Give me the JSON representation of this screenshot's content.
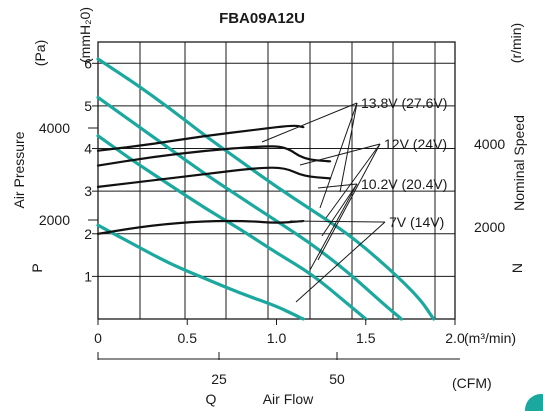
{
  "chart_data": {
    "type": "line",
    "title": "FBA09A12U",
    "colors": {
      "pq": "#1aa89f",
      "speed": "#111111",
      "grid": "#1a1a1a"
    },
    "axes": {
      "x_bottom": {
        "unit": "(m³/min)",
        "ticks": [
          "0",
          "0.5",
          "1.0",
          "1.5",
          "2.0"
        ],
        "range": [
          0,
          2.0
        ]
      },
      "x_cfm": {
        "unit": "(CFM)",
        "ticks": [
          "25",
          "50"
        ]
      },
      "x_label": {
        "symbol": "Q",
        "text": "Air Flow"
      },
      "y_mmh2o": {
        "unit": "(mmH₂0)",
        "ticks": [
          "1",
          "2",
          "3",
          "4",
          "5",
          "6"
        ],
        "range": [
          0,
          6.5
        ]
      },
      "y_pa": {
        "unit": "(Pa)",
        "ticks": [
          "2000",
          "4000"
        ],
        "label": "Air Pressure",
        "symbol": "P"
      },
      "y_right": {
        "unit": "(r/min)",
        "ticks": [
          "2000",
          "4000"
        ],
        "label": "Nominal Speed",
        "symbol": "N"
      },
      "grid": true
    },
    "curve_labels": [
      "13.8V (27.6V)",
      "12V (24V)",
      "10.2V (20.4V)",
      "7V (14V)"
    ],
    "pressure_series": [
      {
        "name": "13.8V (27.6V)",
        "x": [
          0,
          0.2,
          0.4,
          0.6,
          0.8,
          1.0,
          1.2,
          1.4,
          1.6,
          1.8,
          1.88
        ],
        "y": [
          6.1,
          5.55,
          4.95,
          4.3,
          3.7,
          3.1,
          2.55,
          2.0,
          1.3,
          0.5,
          0.0
        ]
      },
      {
        "name": "12V (24V)",
        "x": [
          0,
          0.2,
          0.4,
          0.6,
          0.8,
          1.0,
          1.2,
          1.4,
          1.6,
          1.7
        ],
        "y": [
          5.2,
          4.6,
          4.0,
          3.4,
          2.85,
          2.3,
          1.75,
          1.1,
          0.35,
          0.0
        ]
      },
      {
        "name": "10.2V (20.4V)",
        "x": [
          0,
          0.2,
          0.4,
          0.6,
          0.8,
          1.0,
          1.2,
          1.4,
          1.5
        ],
        "y": [
          4.3,
          3.7,
          3.15,
          2.6,
          2.1,
          1.55,
          1.05,
          0.35,
          0.0
        ]
      },
      {
        "name": "7V (14V)",
        "x": [
          0,
          0.2,
          0.4,
          0.6,
          0.8,
          1.0,
          1.1,
          1.15
        ],
        "y": [
          2.2,
          1.75,
          1.3,
          0.95,
          0.6,
          0.3,
          0.1,
          0.0
        ]
      }
    ],
    "speed_series": [
      {
        "name": "13.8V (27.6V)",
        "x": [
          0,
          0.3,
          0.6,
          0.9,
          1.1,
          1.15
        ],
        "y": [
          3.95,
          4.1,
          4.3,
          4.45,
          4.55,
          4.5
        ]
      },
      {
        "name": "12V (24V)",
        "x": [
          0,
          0.3,
          0.6,
          0.9,
          1.05,
          1.15,
          1.3
        ],
        "y": [
          3.6,
          3.8,
          3.95,
          4.05,
          4.05,
          3.75,
          3.7
        ]
      },
      {
        "name": "10.2V (20.4V)",
        "x": [
          0,
          0.3,
          0.6,
          0.9,
          1.05,
          1.15,
          1.3
        ],
        "y": [
          3.1,
          3.25,
          3.4,
          3.55,
          3.55,
          3.35,
          3.3
        ]
      },
      {
        "name": "7V (14V)",
        "x": [
          0,
          0.3,
          0.6,
          0.85,
          1.0,
          1.15
        ],
        "y": [
          2.0,
          2.2,
          2.3,
          2.3,
          2.25,
          2.3
        ]
      }
    ]
  }
}
